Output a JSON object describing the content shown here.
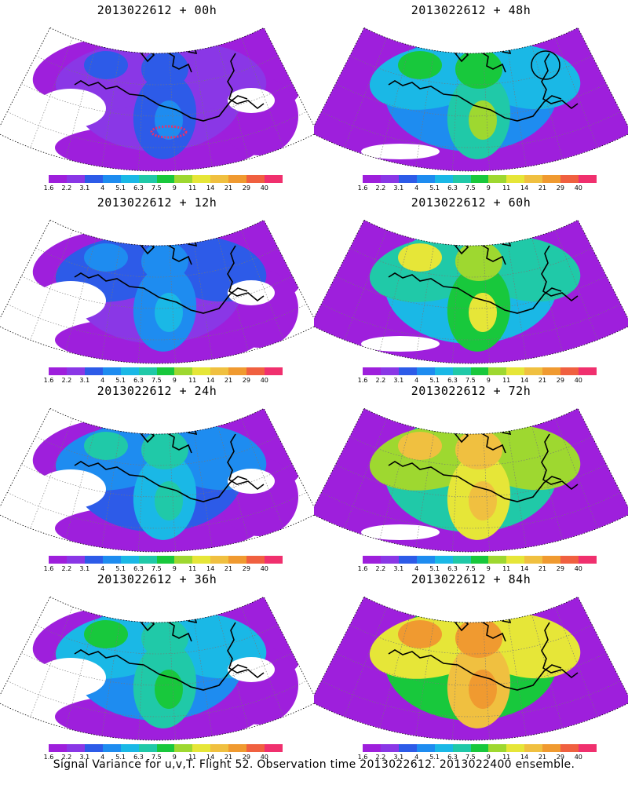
{
  "footer_caption": "Signal Variance for u,v,T. Flight 52. Observation time 2013022612. 2013022400 ensemble.",
  "colorbar": {
    "labels": [
      "1.6",
      "2.2",
      "3.1",
      "4",
      "5.1",
      "6.3",
      "7.5",
      "9",
      "11",
      "14",
      "21",
      "29",
      "40"
    ],
    "colors": [
      "#9e1fdc",
      "#8a37e6",
      "#2d5be8",
      "#1e8cf0",
      "#1ab8e6",
      "#20c9a8",
      "#18c83c",
      "#9ed830",
      "#e6e638",
      "#f0c040",
      "#f09a30",
      "#f06040",
      "#f0306e"
    ]
  },
  "panels": [
    {
      "id": "p00",
      "title": "2013022612 + 00h",
      "level": 0,
      "marker": "red-ring"
    },
    {
      "id": "p48",
      "title": "2013022612 + 48h",
      "level": 3,
      "marker": "black-circle"
    },
    {
      "id": "p12",
      "title": "2013022612 + 12h",
      "level": 1,
      "marker": ""
    },
    {
      "id": "p60",
      "title": "2013022612 + 60h",
      "level": 4,
      "marker": ""
    },
    {
      "id": "p24",
      "title": "2013022612 + 24h",
      "level": 2,
      "marker": ""
    },
    {
      "id": "p72",
      "title": "2013022612 + 72h",
      "level": 5,
      "marker": ""
    },
    {
      "id": "p36",
      "title": "2013022612 + 36h",
      "level": 2.5,
      "marker": ""
    },
    {
      "id": "p84",
      "title": "2013022612 + 84h",
      "level": 6,
      "marker": ""
    }
  ]
}
